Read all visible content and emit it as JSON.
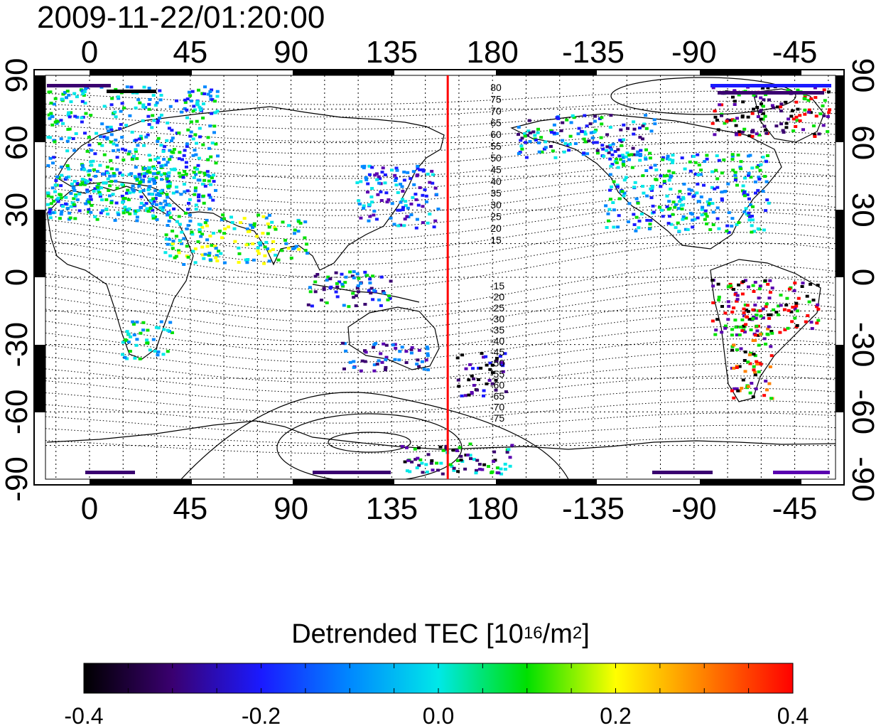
{
  "timestamp": "2009-11-22/01:20:00",
  "map": {
    "lon_ticks": [
      "0",
      "45",
      "90",
      "135",
      "180",
      "-135",
      "-90",
      "-45"
    ],
    "lat_ticks": [
      "90",
      "60",
      "30",
      "0",
      "-30",
      "-60",
      "-90"
    ],
    "contour_labels_north": [
      "80",
      "75",
      "70",
      "65",
      "60",
      "55",
      "50",
      "45",
      "40",
      "35",
      "30",
      "25",
      "20",
      "15"
    ],
    "contour_labels_south": [
      "-15",
      "-20",
      "-25",
      "-30",
      "-35",
      "-40",
      "-45",
      "-50",
      "-55",
      "-60",
      "-65",
      "-70",
      "-75"
    ],
    "terminator_longitude": 160,
    "colors": {
      "terminator": "#ff0000",
      "frame": "#000000"
    }
  },
  "colorbar": {
    "title_text": "Detrended TEC  [10",
    "title_sup1": "16",
    "title_mid": "/m",
    "title_sup2": "2",
    "title_end": "]",
    "min": -0.4,
    "max": 0.4,
    "tick_labels": [
      "-0.4",
      "-0.2",
      "0.0",
      "0.2",
      "0.4"
    ]
  }
}
